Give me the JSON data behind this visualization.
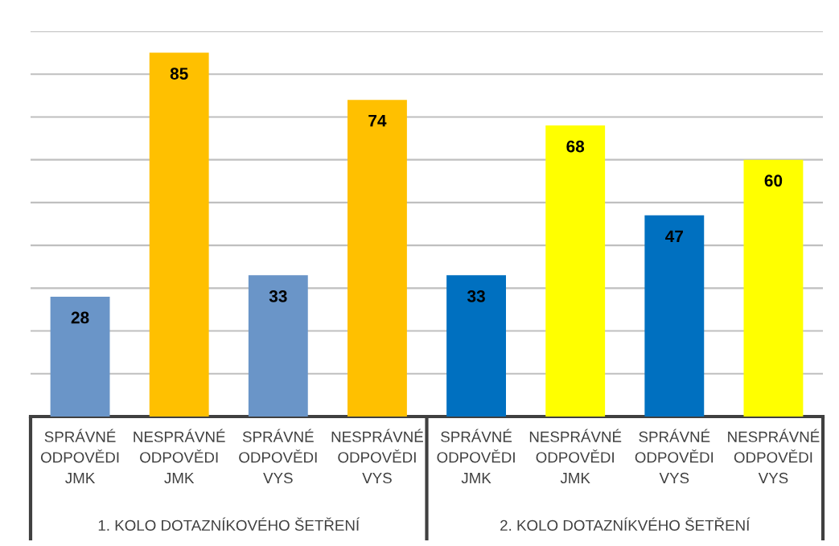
{
  "chart_data": {
    "type": "bar",
    "categories": [
      "SPRÁVNÉ ODPOVĚDI JMK",
      "NESPRÁVNÉ ODPOVĚDI JMK",
      "SPRÁVNÉ ODPOVĚDI VYS",
      "NESPRÁVNÉ ODPOVĚDI VYS",
      "SPRÁVNÉ ODPOVĚDI JMK",
      "NESPRÁVNÉ ODPOVĚDI JMK",
      "SPRÁVNÉ ODPOVĚDI VYS",
      "NESPRÁVNÉ ODPOVĚDI VYS"
    ],
    "values": [
      28,
      85,
      33,
      74,
      33,
      68,
      47,
      60
    ],
    "colors": [
      "#6a95c8",
      "#ffc000",
      "#6a95c8",
      "#ffc000",
      "#0070c0",
      "#ffff00",
      "#0070c0",
      "#ffff00"
    ],
    "ylim": [
      0,
      90
    ],
    "yticks": [
      {
        "value": 10,
        "label": null
      },
      {
        "value": 20,
        "label": null
      },
      {
        "value": 30,
        "label": null
      },
      {
        "value": 40,
        "label": null
      },
      {
        "value": 50,
        "label": null
      },
      {
        "value": 60,
        "label": null
      },
      {
        "value": 70,
        "label": null
      },
      {
        "value": 80,
        "label": null
      },
      {
        "value": 90,
        "label": null
      }
    ],
    "grid": "y",
    "data_labels": true,
    "tick_labels": "x",
    "annotations": [
      "1. KOLO DOTAZNÍKOVÉHO ŠETŘENÍ",
      "2. KOLO DOTAZNÍKVÉHO ŠETŘENÍ"
    ]
  }
}
